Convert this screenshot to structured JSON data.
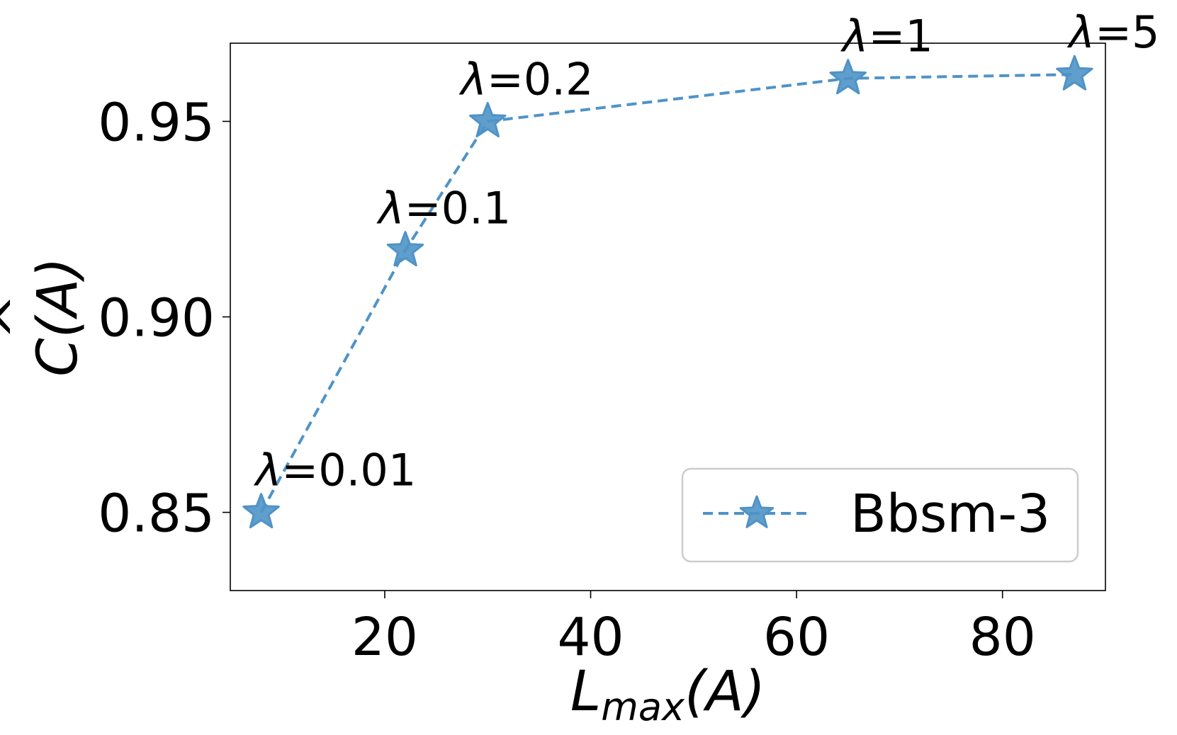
{
  "chart_data": {
    "type": "line",
    "x": [
      8,
      22,
      30,
      65,
      87
    ],
    "series": [
      {
        "name": "Bbsm-3",
        "values": [
          0.85,
          0.917,
          0.95,
          0.961,
          0.962
        ],
        "color": "#4f93c7",
        "marker": "star",
        "line_style": "dashed"
      }
    ],
    "annotations": [
      "λ=0.01",
      "λ=0.1",
      "λ=0.2",
      "λ=1",
      "λ=5"
    ],
    "xlim": [
      5,
      90
    ],
    "ylim": [
      0.83,
      0.97
    ],
    "xticks": [
      20,
      40,
      60,
      80
    ],
    "yticks": [
      0.85,
      0.9,
      0.95
    ],
    "xtick_labels": [
      "20",
      "40",
      "60",
      "80"
    ],
    "ytick_labels": [
      "0.85",
      "0.90",
      "0.95"
    ],
    "xlabel": "L_max(A)",
    "xlabel_main": "L",
    "xlabel_sub": "max",
    "xlabel_tail": "(A)",
    "ylabel": "C(A)",
    "ylabel_hat": "^",
    "ylabel_main": "C",
    "ylabel_tail": "(A)",
    "legend": {
      "placement": "lower-right",
      "entries": [
        "Bbsm-3"
      ]
    },
    "grid": false
  }
}
